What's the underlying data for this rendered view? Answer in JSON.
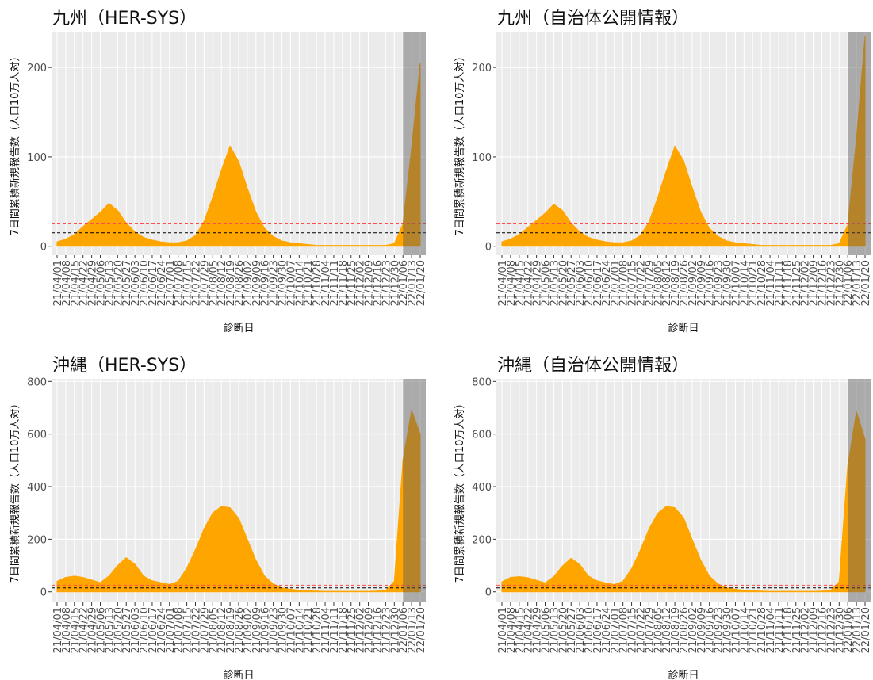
{
  "chart_data": [
    {
      "type": "area",
      "title": "九州（HER-SYS）",
      "x_label": "診断日",
      "y_label": "7日間累積新規報告数（人口10万人対）",
      "categories": [
        "21/04/01",
        "21/04/08",
        "21/04/15",
        "21/04/22",
        "21/04/29",
        "21/05/06",
        "21/05/13",
        "21/05/20",
        "21/05/27",
        "21/06/03",
        "21/06/10",
        "21/06/17",
        "21/06/24",
        "21/07/01",
        "21/07/08",
        "21/07/15",
        "21/07/22",
        "21/07/29",
        "21/08/05",
        "21/08/12",
        "21/08/19",
        "21/08/26",
        "21/09/02",
        "21/09/09",
        "21/09/16",
        "21/09/23",
        "21/09/30",
        "21/10/07",
        "21/10/14",
        "21/10/21",
        "21/10/28",
        "21/11/04",
        "21/11/11",
        "21/11/18",
        "21/11/25",
        "21/12/02",
        "21/12/09",
        "21/12/16",
        "21/12/23",
        "21/12/30",
        "22/01/06",
        "22/01/13",
        "22/01/20"
      ],
      "values": [
        5,
        8,
        13,
        22,
        30,
        38,
        48,
        40,
        26,
        16,
        10,
        7,
        5,
        4,
        4,
        6,
        12,
        28,
        55,
        85,
        112,
        95,
        65,
        38,
        20,
        11,
        6,
        4,
        3,
        2,
        1,
        1,
        1,
        1,
        1,
        1,
        1,
        1,
        1,
        3,
        25,
        110,
        205
      ],
      "color": "#ffa500",
      "ylim": [
        -10,
        240
      ],
      "yticks": [
        0,
        100,
        200
      ],
      "grid": true,
      "hlines": [
        {
          "value": 25,
          "color": "#ff4d4d"
        },
        {
          "value": 15,
          "color": "#000000"
        }
      ],
      "shaded_from": "22/01/06"
    },
    {
      "type": "area",
      "title": "九州（自治体公開情報）",
      "x_label": "診断日",
      "y_label": "7日間累積新規報告数（人口10万人対）",
      "categories": [
        "21/04/01",
        "21/04/08",
        "21/04/15",
        "21/04/22",
        "21/04/29",
        "21/05/06",
        "21/05/13",
        "21/05/20",
        "21/05/27",
        "21/06/03",
        "21/06/10",
        "21/06/17",
        "21/06/24",
        "21/07/01",
        "21/07/08",
        "21/07/15",
        "21/07/22",
        "21/07/29",
        "21/08/05",
        "21/08/12",
        "21/08/19",
        "21/08/26",
        "21/09/02",
        "21/09/09",
        "21/09/16",
        "21/09/23",
        "21/09/30",
        "21/10/07",
        "21/10/14",
        "21/10/21",
        "21/10/28",
        "21/11/04",
        "21/11/11",
        "21/11/18",
        "21/11/25",
        "21/12/02",
        "21/12/09",
        "21/12/16",
        "21/12/23",
        "21/12/30",
        "22/01/06",
        "22/01/13",
        "22/01/20"
      ],
      "values": [
        5,
        8,
        13,
        21,
        29,
        37,
        47,
        40,
        26,
        16,
        10,
        7,
        5,
        4,
        4,
        6,
        12,
        27,
        54,
        84,
        112,
        96,
        66,
        38,
        20,
        11,
        6,
        4,
        3,
        2,
        1,
        1,
        1,
        1,
        1,
        1,
        1,
        1,
        1,
        3,
        24,
        120,
        235
      ],
      "color": "#ffa500",
      "ylim": [
        -10,
        240
      ],
      "yticks": [
        0,
        100,
        200
      ],
      "grid": true,
      "hlines": [
        {
          "value": 25,
          "color": "#ff4d4d"
        },
        {
          "value": 15,
          "color": "#000000"
        }
      ],
      "shaded_from": "22/01/06"
    },
    {
      "type": "area",
      "title": "沖縄（HER-SYS）",
      "x_label": "診断日",
      "y_label": "7日間累積新規報告数（人口10万人対）",
      "categories": [
        "21/04/01",
        "21/04/08",
        "21/04/15",
        "21/04/22",
        "21/04/29",
        "21/05/06",
        "21/05/13",
        "21/05/20",
        "21/05/27",
        "21/06/03",
        "21/06/10",
        "21/06/17",
        "21/06/24",
        "21/07/01",
        "21/07/08",
        "21/07/15",
        "21/07/22",
        "21/07/29",
        "21/08/05",
        "21/08/12",
        "21/08/19",
        "21/08/26",
        "21/09/02",
        "21/09/09",
        "21/09/16",
        "21/09/23",
        "21/09/30",
        "21/10/07",
        "21/10/14",
        "21/10/21",
        "21/10/28",
        "21/11/04",
        "21/11/11",
        "21/11/18",
        "21/11/25",
        "21/12/02",
        "21/12/09",
        "21/12/16",
        "21/12/23",
        "21/12/30",
        "22/01/06",
        "22/01/13",
        "22/01/20"
      ],
      "values": [
        40,
        55,
        60,
        55,
        45,
        35,
        60,
        100,
        130,
        105,
        60,
        42,
        35,
        28,
        40,
        90,
        160,
        240,
        300,
        325,
        320,
        280,
        200,
        120,
        60,
        30,
        15,
        10,
        6,
        4,
        3,
        2,
        2,
        2,
        2,
        2,
        2,
        3,
        5,
        40,
        500,
        690,
        600
      ],
      "color": "#ffa500",
      "ylim": [
        -40,
        810
      ],
      "yticks": [
        0,
        200,
        400,
        600,
        800
      ],
      "grid": true,
      "hlines": [
        {
          "value": 25,
          "color": "#ff4d4d"
        },
        {
          "value": 15,
          "color": "#000000"
        }
      ],
      "shaded_from": "22/01/06"
    },
    {
      "type": "area",
      "title": "沖縄（自治体公開情報）",
      "x_label": "診断日",
      "y_label": "7日間累積新規報告数（人口10万人対）",
      "categories": [
        "21/04/01",
        "21/04/08",
        "21/04/15",
        "21/04/22",
        "21/04/29",
        "21/05/06",
        "21/05/13",
        "21/05/20",
        "21/05/27",
        "21/06/03",
        "21/06/10",
        "21/06/17",
        "21/06/24",
        "21/07/01",
        "21/07/08",
        "21/07/15",
        "21/07/22",
        "21/07/29",
        "21/08/05",
        "21/08/12",
        "21/08/19",
        "21/08/26",
        "21/09/02",
        "21/09/09",
        "21/09/16",
        "21/09/23",
        "21/09/30",
        "21/10/07",
        "21/10/14",
        "21/10/21",
        "21/10/28",
        "21/11/04",
        "21/11/11",
        "21/11/18",
        "21/11/25",
        "21/12/02",
        "21/12/09",
        "21/12/16",
        "21/12/23",
        "21/12/30",
        "22/01/06",
        "22/01/13",
        "22/01/20"
      ],
      "values": [
        38,
        55,
        58,
        54,
        44,
        34,
        58,
        98,
        128,
        104,
        60,
        42,
        34,
        28,
        40,
        88,
        158,
        238,
        298,
        325,
        320,
        282,
        200,
        120,
        60,
        30,
        15,
        10,
        6,
        4,
        3,
        2,
        2,
        2,
        2,
        2,
        2,
        3,
        5,
        38,
        480,
        685,
        580
      ],
      "color": "#ffa500",
      "ylim": [
        -40,
        810
      ],
      "yticks": [
        0,
        200,
        400,
        600,
        800
      ],
      "grid": true,
      "hlines": [
        {
          "value": 25,
          "color": "#ff4d4d"
        },
        {
          "value": 15,
          "color": "#000000"
        }
      ],
      "shaded_from": "22/01/06"
    }
  ]
}
